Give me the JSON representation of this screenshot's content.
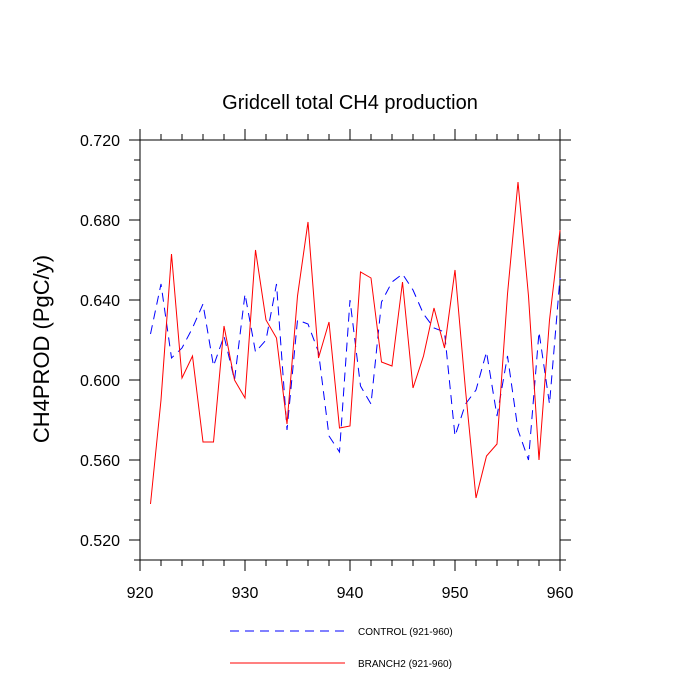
{
  "chart_data": {
    "type": "line",
    "title": "Gridcell total CH4 production",
    "xlabel": "",
    "ylabel": "CH4PROD  (PgC/y)",
    "xlim": [
      921,
      960
    ],
    "ylim": [
      0.51,
      0.72
    ],
    "xticks": [
      920,
      930,
      940,
      950,
      960
    ],
    "yticks": [
      0.52,
      0.56,
      0.6,
      0.64,
      0.68,
      0.72
    ],
    "ytick_labels": [
      "0.520",
      "0.560",
      "0.600",
      "0.640",
      "0.680",
      "0.720"
    ],
    "grid": false,
    "legend_position": "bottom-center",
    "x": [
      921,
      922,
      923,
      924,
      925,
      926,
      927,
      928,
      929,
      930,
      931,
      932,
      933,
      934,
      935,
      936,
      937,
      938,
      939,
      940,
      941,
      942,
      943,
      944,
      945,
      946,
      947,
      948,
      949,
      950,
      951,
      952,
      953,
      954,
      955,
      956,
      957,
      958,
      959,
      960
    ],
    "series": [
      {
        "name": "CONTROL (921-960)",
        "color": "#0000ff",
        "style": "dashed",
        "values": [
          0.623,
          0.648,
          0.611,
          0.616,
          0.626,
          0.638,
          0.607,
          0.622,
          0.6,
          0.643,
          0.614,
          0.62,
          0.648,
          0.575,
          0.63,
          0.628,
          0.614,
          0.572,
          0.564,
          0.64,
          0.597,
          0.588,
          0.639,
          0.649,
          0.653,
          0.645,
          0.633,
          0.626,
          0.624,
          0.572,
          0.588,
          0.595,
          0.614,
          0.582,
          0.612,
          0.575,
          0.56,
          0.624,
          0.588,
          0.651
        ]
      },
      {
        "name": "BRANCH2 (921-960)",
        "color": "#ff0000",
        "style": "solid",
        "values": [
          0.538,
          0.59,
          0.663,
          0.601,
          0.612,
          0.569,
          0.569,
          0.627,
          0.6,
          0.591,
          0.665,
          0.63,
          0.621,
          0.578,
          0.642,
          0.679,
          0.611,
          0.629,
          0.576,
          0.577,
          0.654,
          0.651,
          0.609,
          0.607,
          0.649,
          0.596,
          0.612,
          0.636,
          0.616,
          0.655,
          0.595,
          0.541,
          0.562,
          0.568,
          0.643,
          0.699,
          0.642,
          0.56,
          0.63,
          0.675
        ]
      }
    ]
  }
}
